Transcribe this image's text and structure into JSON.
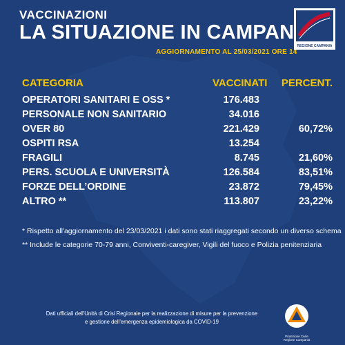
{
  "header": {
    "kicker": "VACCINAZIONI",
    "title": "LA SITUAZIONE IN CAMPANIA",
    "update": "AGGIORNAMENTO AL 25/03/2021 ORE 14",
    "logo_caption": "REGIONE CAMPANIA"
  },
  "table": {
    "headers": {
      "category": "CATEGORIA",
      "vaccinated": "VACCINATI",
      "percent": "PERCENT."
    },
    "rows": [
      {
        "category": "OPERATORI SANITARI E OSS *",
        "vaccinated": "176.483",
        "percent": ""
      },
      {
        "category": "PERSONALE NON SANITARIO",
        "vaccinated": "34.016",
        "percent": ""
      },
      {
        "category": "OVER 80",
        "vaccinated": "221.429",
        "percent": "60,72%"
      },
      {
        "category": "OSPITI RSA",
        "vaccinated": "13.254",
        "percent": ""
      },
      {
        "category": "FRAGILI",
        "vaccinated": "8.745",
        "percent": "21,60%"
      },
      {
        "category": "PERS.  SCUOLA E UNIVERSITÀ",
        "vaccinated": "126.584",
        "percent": "83,51%"
      },
      {
        "category": "FORZE DELL’ORDINE",
        "vaccinated": "23.872",
        "percent": "79,45%"
      },
      {
        "category": "ALTRO **",
        "vaccinated": "113.807",
        "percent": "23,22%"
      }
    ]
  },
  "notes": [
    "* Rispetto all'aggiornamento del 23/03/2021 i dati sono stati riaggregati secondo un diverso schema",
    "** Include le categorie 70-79 anni, Conviventi-caregiver, Vigili del fuoco e Polizia penitenziaria"
  ],
  "footer": {
    "line1": "Dati ufficiali dell'Unità di Crisi Regionale per la realizzazione di misure per la  prevenzione",
    "line2": "e gestione dell'emergenza epidemiologica da COVID-19",
    "pc_caption": "Protezione Civile Regione Campania"
  },
  "colors": {
    "background": "#1e3f7a",
    "accent": "#f5c400",
    "text": "#ffffff"
  }
}
